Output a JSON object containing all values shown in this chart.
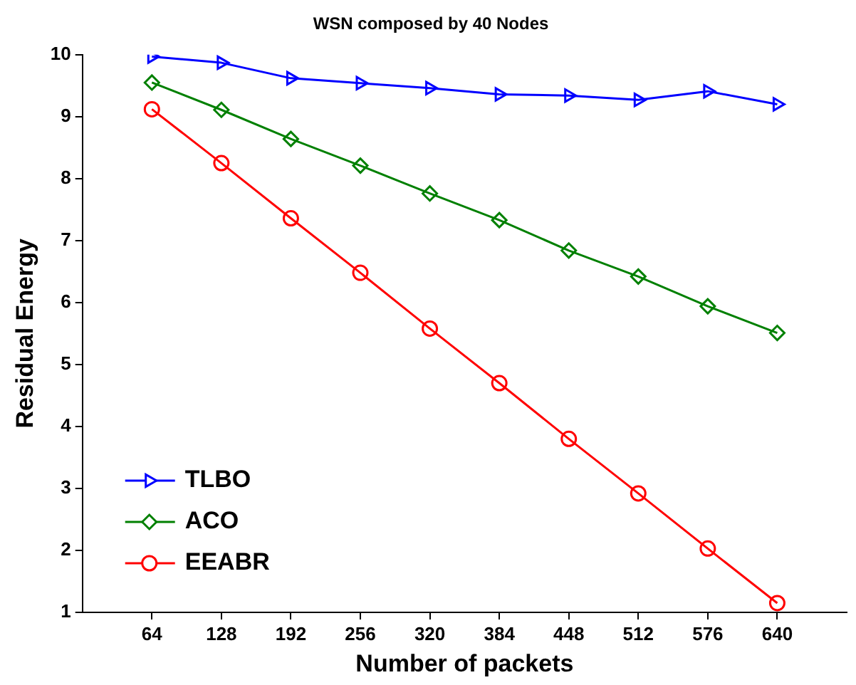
{
  "chart_data": {
    "type": "line",
    "title": "WSN composed by 40 Nodes",
    "xlabel": "Number of packets",
    "ylabel": "Residual Energy",
    "x": [
      64,
      128,
      192,
      256,
      320,
      384,
      448,
      512,
      576,
      640
    ],
    "xlim": [
      0,
      704
    ],
    "xticks": [
      64,
      128,
      192,
      256,
      320,
      384,
      448,
      512,
      576,
      640
    ],
    "ylim": [
      1,
      10
    ],
    "yticks": [
      1,
      2,
      3,
      4,
      5,
      6,
      7,
      8,
      9,
      10
    ],
    "grid": false,
    "legend": "bottom left",
    "line_style": "solid",
    "series": [
      {
        "name": "TLBO",
        "color": "#0000ff",
        "marker": "triangle",
        "values": [
          9.97,
          9.87,
          9.62,
          9.54,
          9.46,
          9.36,
          9.34,
          9.27,
          9.41,
          9.2
        ]
      },
      {
        "name": "ACO",
        "color": "#008000",
        "marker": "diamond",
        "values": [
          9.55,
          9.11,
          8.64,
          8.21,
          7.76,
          7.33,
          6.84,
          6.42,
          5.94,
          5.51
        ]
      },
      {
        "name": "EEABR",
        "color": "#ff0000",
        "marker": "circle",
        "values": [
          9.12,
          8.25,
          7.36,
          6.48,
          5.58,
          4.7,
          3.8,
          2.92,
          2.03,
          1.15
        ]
      }
    ]
  }
}
